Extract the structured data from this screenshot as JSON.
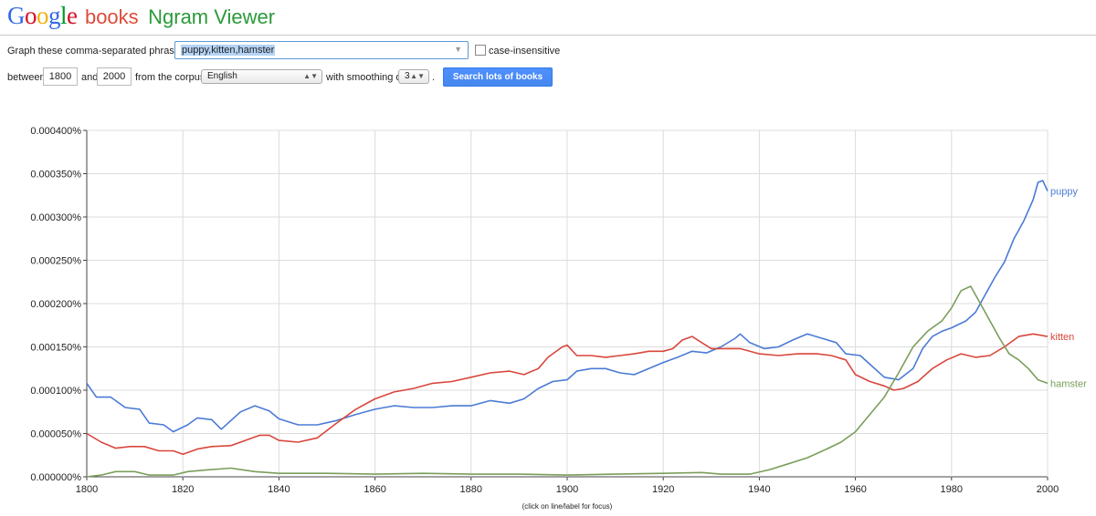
{
  "header": {
    "logo_letters": [
      {
        "ch": "G",
        "color": "#3369e8"
      },
      {
        "ch": "o",
        "color": "#d50f25"
      },
      {
        "ch": "o",
        "color": "#eeb211"
      },
      {
        "ch": "g",
        "color": "#3369e8"
      },
      {
        "ch": "l",
        "color": "#009925"
      },
      {
        "ch": "e",
        "color": "#d50f25"
      }
    ],
    "books_label": "books",
    "title": "Ngram Viewer"
  },
  "form": {
    "phrases_label": "Graph these comma-separated phrases:",
    "phrases_value": "puppy,kitten,hamster",
    "case_label": "case-insensitive",
    "between_label": "between",
    "start_year": "1800",
    "and_label": "and",
    "end_year": "2000",
    "corpus_label": "from the corpus",
    "corpus_value": "English",
    "smoothing_label": "with smoothing of",
    "smoothing_value": "3",
    "smoothing_suffix": ".",
    "search_button": "Search lots of books"
  },
  "chart_data": {
    "type": "line",
    "xlim": [
      1800,
      2000
    ],
    "ylim": [
      0,
      0.0004
    ],
    "x_ticks": [
      1800,
      1820,
      1840,
      1860,
      1880,
      1900,
      1920,
      1940,
      1960,
      1980,
      2000
    ],
    "y_ticks": [
      0,
      5e-05,
      0.0001,
      0.00015,
      0.0002,
      0.00025,
      0.0003,
      0.00035,
      0.0004
    ],
    "y_tick_labels": [
      "0.000000%",
      "0.000050%",
      "0.000100%",
      "0.000150%",
      "0.000200%",
      "0.000250%",
      "0.000300%",
      "0.000350%",
      "0.000400%"
    ],
    "grid": true,
    "note": "(click on line/label for focus)",
    "series": [
      {
        "name": "puppy",
        "color": "#4b7bd6",
        "points": [
          [
            1800,
            0.000108
          ],
          [
            1802,
            9.2e-05
          ],
          [
            1805,
            9.2e-05
          ],
          [
            1808,
            8e-05
          ],
          [
            1811,
            7.8e-05
          ],
          [
            1813,
            6.2e-05
          ],
          [
            1816,
            6e-05
          ],
          [
            1818,
            5.2e-05
          ],
          [
            1821,
            6e-05
          ],
          [
            1823,
            6.8e-05
          ],
          [
            1826,
            6.6e-05
          ],
          [
            1828,
            5.5e-05
          ],
          [
            1830,
            6.5e-05
          ],
          [
            1832,
            7.5e-05
          ],
          [
            1835,
            8.2e-05
          ],
          [
            1838,
            7.6e-05
          ],
          [
            1840,
            6.7e-05
          ],
          [
            1844,
            6e-05
          ],
          [
            1848,
            6e-05
          ],
          [
            1852,
            6.5e-05
          ],
          [
            1856,
            7.2e-05
          ],
          [
            1860,
            7.8e-05
          ],
          [
            1864,
            8.2e-05
          ],
          [
            1868,
            8e-05
          ],
          [
            1872,
            8e-05
          ],
          [
            1876,
            8.2e-05
          ],
          [
            1880,
            8.2e-05
          ],
          [
            1884,
            8.8e-05
          ],
          [
            1888,
            8.5e-05
          ],
          [
            1891,
            9e-05
          ],
          [
            1894,
            0.000102
          ],
          [
            1897,
            0.00011
          ],
          [
            1900,
            0.000112
          ],
          [
            1902,
            0.000122
          ],
          [
            1905,
            0.000125
          ],
          [
            1908,
            0.000125
          ],
          [
            1911,
            0.00012
          ],
          [
            1914,
            0.000118
          ],
          [
            1917,
            0.000125
          ],
          [
            1920,
            0.000132
          ],
          [
            1923,
            0.000138
          ],
          [
            1926,
            0.000145
          ],
          [
            1929,
            0.000143
          ],
          [
            1932,
            0.00015
          ],
          [
            1935,
            0.00016
          ],
          [
            1936,
            0.000165
          ],
          [
            1938,
            0.000155
          ],
          [
            1941,
            0.000148
          ],
          [
            1944,
            0.00015
          ],
          [
            1947,
            0.000158
          ],
          [
            1950,
            0.000165
          ],
          [
            1953,
            0.00016
          ],
          [
            1956,
            0.000155
          ],
          [
            1958,
            0.000142
          ],
          [
            1961,
            0.00014
          ],
          [
            1963,
            0.00013
          ],
          [
            1966,
            0.000115
          ],
          [
            1969,
            0.000112
          ],
          [
            1972,
            0.000125
          ],
          [
            1974,
            0.000148
          ],
          [
            1976,
            0.000162
          ],
          [
            1978,
            0.000168
          ],
          [
            1980,
            0.000172
          ],
          [
            1983,
            0.00018
          ],
          [
            1985,
            0.00019
          ],
          [
            1987,
            0.00021
          ],
          [
            1989,
            0.00023
          ],
          [
            1991,
            0.000248
          ],
          [
            1993,
            0.000275
          ],
          [
            1995,
            0.000295
          ],
          [
            1997,
            0.00032
          ],
          [
            1998,
            0.00034
          ],
          [
            1999,
            0.000342
          ],
          [
            2000,
            0.00033
          ]
        ]
      },
      {
        "name": "kitten",
        "color": "#d9463c",
        "points": [
          [
            1800,
            5e-05
          ],
          [
            1803,
            4e-05
          ],
          [
            1806,
            3.3e-05
          ],
          [
            1809,
            3.5e-05
          ],
          [
            1812,
            3.5e-05
          ],
          [
            1815,
            3e-05
          ],
          [
            1818,
            3e-05
          ],
          [
            1820,
            2.6e-05
          ],
          [
            1823,
            3.2e-05
          ],
          [
            1826,
            3.5e-05
          ],
          [
            1830,
            3.6e-05
          ],
          [
            1833,
            4.2e-05
          ],
          [
            1836,
            4.8e-05
          ],
          [
            1838,
            4.8e-05
          ],
          [
            1840,
            4.2e-05
          ],
          [
            1844,
            4e-05
          ],
          [
            1848,
            4.5e-05
          ],
          [
            1852,
            6.2e-05
          ],
          [
            1856,
            7.8e-05
          ],
          [
            1860,
            9e-05
          ],
          [
            1864,
            9.8e-05
          ],
          [
            1868,
            0.000102
          ],
          [
            1872,
            0.000108
          ],
          [
            1876,
            0.00011
          ],
          [
            1880,
            0.000115
          ],
          [
            1884,
            0.00012
          ],
          [
            1888,
            0.000122
          ],
          [
            1891,
            0.000118
          ],
          [
            1894,
            0.000125
          ],
          [
            1896,
            0.000138
          ],
          [
            1899,
            0.00015
          ],
          [
            1900,
            0.000152
          ],
          [
            1902,
            0.00014
          ],
          [
            1905,
            0.00014
          ],
          [
            1908,
            0.000138
          ],
          [
            1911,
            0.00014
          ],
          [
            1914,
            0.000142
          ],
          [
            1917,
            0.000145
          ],
          [
            1920,
            0.000145
          ],
          [
            1922,
            0.000148
          ],
          [
            1924,
            0.000158
          ],
          [
            1926,
            0.000162
          ],
          [
            1928,
            0.000155
          ],
          [
            1930,
            0.000148
          ],
          [
            1933,
            0.000148
          ],
          [
            1936,
            0.000148
          ],
          [
            1940,
            0.000142
          ],
          [
            1944,
            0.00014
          ],
          [
            1948,
            0.000142
          ],
          [
            1952,
            0.000142
          ],
          [
            1955,
            0.00014
          ],
          [
            1958,
            0.000135
          ],
          [
            1960,
            0.000118
          ],
          [
            1963,
            0.00011
          ],
          [
            1966,
            0.000105
          ],
          [
            1968,
            0.0001
          ],
          [
            1970,
            0.000102
          ],
          [
            1973,
            0.00011
          ],
          [
            1976,
            0.000125
          ],
          [
            1979,
            0.000135
          ],
          [
            1982,
            0.000142
          ],
          [
            1985,
            0.000138
          ],
          [
            1988,
            0.00014
          ],
          [
            1991,
            0.00015
          ],
          [
            1994,
            0.000162
          ],
          [
            1997,
            0.000165
          ],
          [
            2000,
            0.000162
          ]
        ]
      },
      {
        "name": "hamster",
        "color": "#7a9e5a",
        "points": [
          [
            1800,
            0.0
          ],
          [
            1803,
            2e-06
          ],
          [
            1806,
            6e-06
          ],
          [
            1810,
            6e-06
          ],
          [
            1813,
            2e-06
          ],
          [
            1818,
            2e-06
          ],
          [
            1821,
            6e-06
          ],
          [
            1825,
            8e-06
          ],
          [
            1830,
            1e-05
          ],
          [
            1835,
            6e-06
          ],
          [
            1840,
            4e-06
          ],
          [
            1850,
            4e-06
          ],
          [
            1860,
            3e-06
          ],
          [
            1870,
            4e-06
          ],
          [
            1880,
            3e-06
          ],
          [
            1890,
            3e-06
          ],
          [
            1900,
            2e-06
          ],
          [
            1910,
            3e-06
          ],
          [
            1920,
            4e-06
          ],
          [
            1928,
            5e-06
          ],
          [
            1932,
            3e-06
          ],
          [
            1938,
            3e-06
          ],
          [
            1942,
            8e-06
          ],
          [
            1946,
            1.5e-05
          ],
          [
            1950,
            2.2e-05
          ],
          [
            1954,
            3.2e-05
          ],
          [
            1957,
            4e-05
          ],
          [
            1960,
            5.2e-05
          ],
          [
            1963,
            7.2e-05
          ],
          [
            1966,
            9.2e-05
          ],
          [
            1969,
            0.00012
          ],
          [
            1972,
            0.00015
          ],
          [
            1975,
            0.000168
          ],
          [
            1978,
            0.00018
          ],
          [
            1980,
            0.000195
          ],
          [
            1982,
            0.000215
          ],
          [
            1984,
            0.00022
          ],
          [
            1986,
            0.0002
          ],
          [
            1988,
            0.00018
          ],
          [
            1990,
            0.00016
          ],
          [
            1992,
            0.000142
          ],
          [
            1994,
            0.000135
          ],
          [
            1996,
            0.000125
          ],
          [
            1998,
            0.000112
          ],
          [
            2000,
            0.000108
          ]
        ]
      }
    ]
  }
}
